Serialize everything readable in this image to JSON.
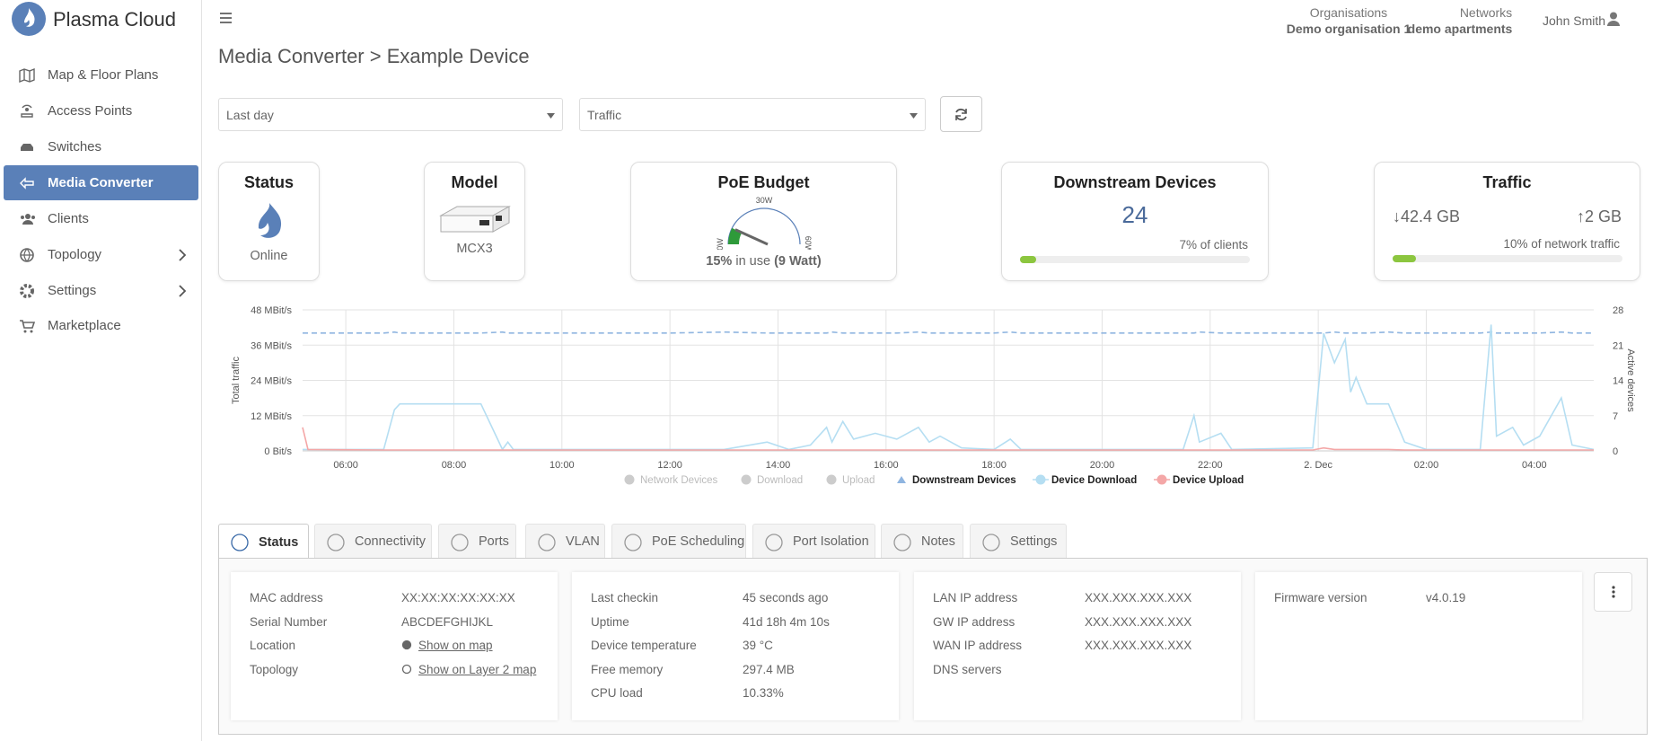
{
  "sidebar": {
    "brand": "Plasma Cloud",
    "nav": [
      "Map & Floor Plans",
      "Access Points",
      "Switches",
      "Media Converter",
      "Clients",
      "Topology",
      "Settings",
      "Marketplace"
    ]
  },
  "header": {
    "org_label": "Organisations",
    "org": "Demo organisation 1",
    "net_label": "Networks",
    "net": "demo apartments",
    "user": "John Smith"
  },
  "page_title": "Media Converter > Example Device",
  "filters": {
    "period": "Last day",
    "metric": "Traffic"
  },
  "cards": {
    "status": {
      "title": "Status",
      "value": "Online"
    },
    "model": {
      "title": "Model",
      "value": "MCX3"
    },
    "poe": {
      "title": "PoE Budget",
      "percent": "15%",
      "text": "in use",
      "watt": "(9 Watt)",
      "gauge": {
        "min": {
          "value": 0,
          "label": "0W"
        },
        "mid": {
          "value": 30,
          "label": "30W"
        },
        "max": {
          "value": 60,
          "label": "60W"
        },
        "value": 9
      }
    },
    "downstream": {
      "title": "Downstream Devices",
      "value": "24",
      "note": "7% of clients",
      "progress": 7
    },
    "traffic": {
      "title": "Traffic",
      "down": "42.4 GB",
      "up": "2 GB",
      "note": "10% of network traffic",
      "progress": 10
    }
  },
  "chart_data": {
    "type": "line",
    "y_label": "Total traffic",
    "y2_label": "Active devices",
    "xlim": [
      5.2,
      29.1
    ],
    "xticks": [
      {
        "value": 6,
        "label": "06:00"
      },
      {
        "value": 8,
        "label": "08:00"
      },
      {
        "value": 10,
        "label": "10:00"
      },
      {
        "value": 12,
        "label": "12:00"
      },
      {
        "value": 14,
        "label": "14:00"
      },
      {
        "value": 16,
        "label": "16:00"
      },
      {
        "value": 18,
        "label": "18:00"
      },
      {
        "value": 20,
        "label": "20:00"
      },
      {
        "value": 22,
        "label": "22:00"
      },
      {
        "value": 24,
        "label": "2. Dec"
      },
      {
        "value": 26,
        "label": "02:00"
      },
      {
        "value": 28,
        "label": "04:00"
      }
    ],
    "ylim": [
      0,
      48
    ],
    "yticks": [
      {
        "value": 0,
        "label": "0 Bit/s"
      },
      {
        "value": 12,
        "label": "12 MBit/s"
      },
      {
        "value": 24,
        "label": "24 MBit/s"
      },
      {
        "value": 36,
        "label": "36 MBit/s"
      },
      {
        "value": 48,
        "label": "48 MBit/s"
      }
    ],
    "y2lim": [
      0,
      28
    ],
    "y2ticks": [
      0,
      7,
      14,
      21,
      28
    ],
    "grid": true,
    "x": [
      5.2,
      5.3,
      6.7,
      6.9,
      7.0,
      7.5,
      8.5,
      8.9,
      9.0,
      9.1,
      12.0,
      13.0,
      13.8,
      14.2,
      14.6,
      14.9,
      15.0,
      15.2,
      15.4,
      15.8,
      16.2,
      16.6,
      16.8,
      17.0,
      17.4,
      18.0,
      18.3,
      18.5,
      21.5,
      21.7,
      21.8,
      22.2,
      22.4,
      23.9,
      24.1,
      24.3,
      24.5,
      24.6,
      24.7,
      24.9,
      25.3,
      25.6,
      26.0,
      27.0,
      27.2,
      27.3,
      27.6,
      27.8,
      28.1,
      28.5,
      28.7,
      29.1
    ],
    "series": [
      {
        "name": "Network Devices",
        "color": "#cccccc",
        "hidden": true
      },
      {
        "name": "Download",
        "color": "#cccccc",
        "hidden": true
      },
      {
        "name": "Upload",
        "color": "#cccccc",
        "hidden": true
      },
      {
        "name": "Downstream Devices",
        "color": "#8fb5e0",
        "axis": "y2",
        "dashed": true,
        "values": [
          23.4,
          23.4,
          23.4,
          23.6,
          23.4,
          23.4,
          23.4,
          23.6,
          23.4,
          23.4,
          23.4,
          23.6,
          23.4,
          23.4,
          23.4,
          23.4,
          23.6,
          23.4,
          23.4,
          23.4,
          23.4,
          23.6,
          23.4,
          23.4,
          23.4,
          23.4,
          23.6,
          23.4,
          23.4,
          23.4,
          23.6,
          23.4,
          23.4,
          23.4,
          23.4,
          23.6,
          23.4,
          23.4,
          23.4,
          23.4,
          23.6,
          23.4,
          23.4,
          23.4,
          23.6,
          23.4,
          23.4,
          23.4,
          23.4,
          23.6,
          23.4,
          23.4
        ]
      },
      {
        "name": "Device Download",
        "color": "#b5def2",
        "values": [
          0.5,
          0.5,
          0.5,
          14,
          16,
          16,
          16,
          0.5,
          3,
          0.5,
          0.5,
          0.5,
          3,
          0.5,
          2,
          8,
          3,
          10,
          4,
          6,
          4,
          8,
          3,
          5,
          1,
          0.5,
          4,
          0.5,
          0.5,
          12,
          3,
          6,
          0.5,
          1,
          40,
          30,
          38,
          20,
          25,
          16,
          16,
          3,
          0.5,
          0.5,
          43,
          5,
          8,
          2,
          5,
          18,
          2,
          0.5
        ]
      },
      {
        "name": "Device Upload",
        "color": "#f4a7a7",
        "values": [
          8,
          0.5,
          0.3,
          0.3,
          0.3,
          0.3,
          0.3,
          0.3,
          0.3,
          0.3,
          0.3,
          0.3,
          0.3,
          0.3,
          0.3,
          0.3,
          0.3,
          0.3,
          0.3,
          0.3,
          0.3,
          0.3,
          0.3,
          0.3,
          0.3,
          0.3,
          0.3,
          0.3,
          0.3,
          0.3,
          0.3,
          0.3,
          0.3,
          0.3,
          1,
          0.5,
          0.5,
          0.5,
          0.5,
          0.5,
          0.5,
          0.3,
          0.3,
          0.3,
          0.3,
          0.3,
          0.3,
          0.3,
          0.3,
          0.3,
          0.3,
          0.3
        ]
      }
    ]
  },
  "tabs": [
    "Status",
    "Connectivity",
    "Ports",
    "VLAN",
    "PoE Scheduling",
    "Port Isolation",
    "Notes",
    "Settings"
  ],
  "details": [
    [
      [
        "MAC address",
        "XX:XX:XX:XX:XX:XX"
      ],
      [
        "Serial Number",
        "ABCDEFGHIJKL"
      ],
      [
        "Location",
        "Show on map"
      ],
      [
        "Topology",
        "Show on Layer 2 map"
      ]
    ],
    [
      [
        "Last checkin",
        "45 seconds ago"
      ],
      [
        "Uptime",
        "41d 18h 4m 10s"
      ],
      [
        "Device temperature",
        "39 °C"
      ],
      [
        "Free memory",
        "297.4 MB"
      ],
      [
        "CPU load",
        "10.33%"
      ]
    ],
    [
      [
        "LAN IP address",
        "XXX.XXX.XXX.XXX"
      ],
      [
        "GW IP address",
        "XXX.XXX.XXX.XXX"
      ],
      [
        "WAN IP address",
        "XXX.XXX.XXX.XXX"
      ],
      [
        "DNS servers"
      ]
    ],
    [
      [
        "Firmware version",
        "v4.0.19"
      ]
    ]
  ]
}
